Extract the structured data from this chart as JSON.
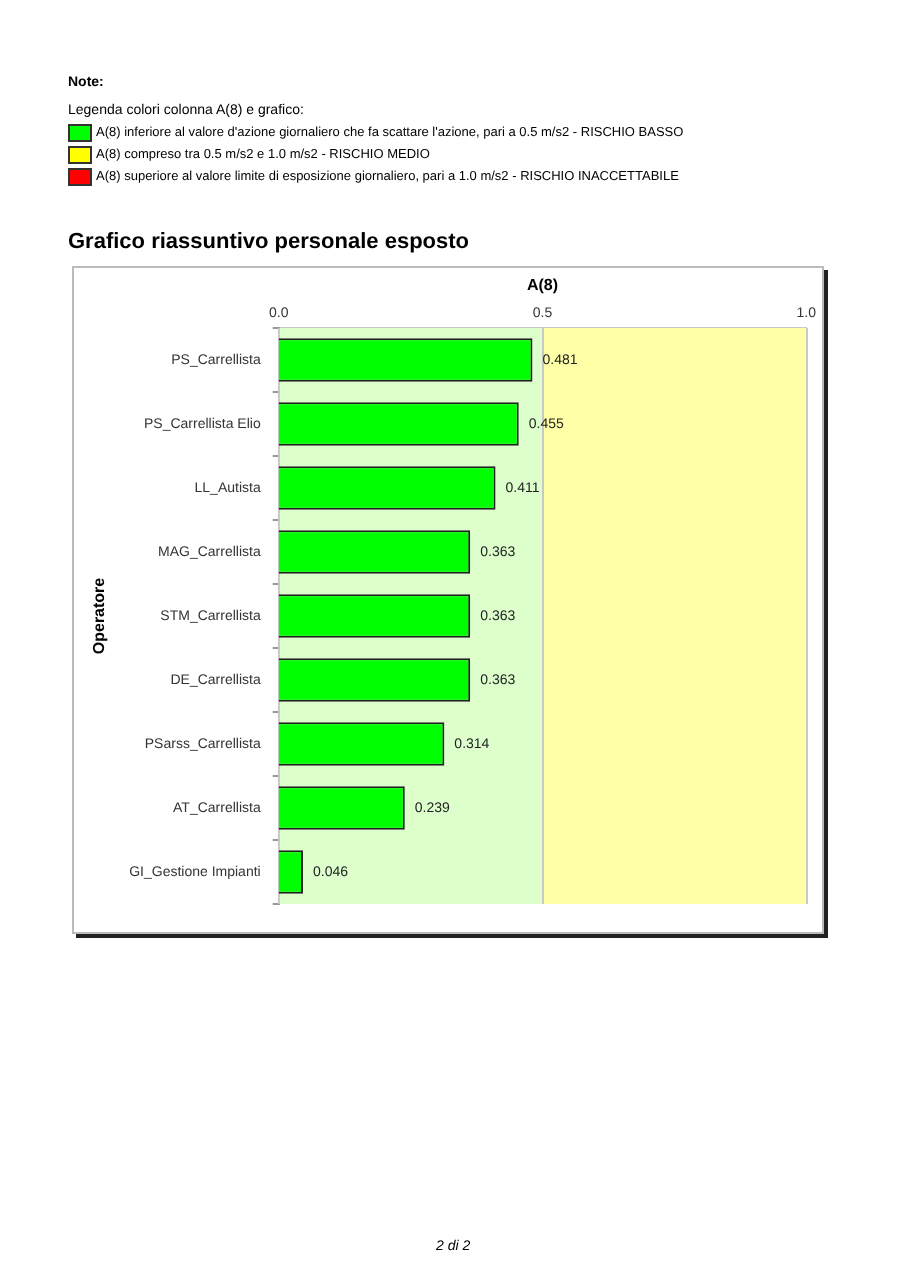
{
  "chart_data": {
    "type": "bar",
    "orientation": "horizontal",
    "title": "Grafico riassuntivo personale esposto",
    "xlabel": "A(8)",
    "ylabel": "Operatore",
    "categories": [
      "PS_Carrellista",
      "PS_Carrellista Elio",
      "LL_Autista",
      "MAG_Carrellista",
      "STM_Carrellista",
      "DE_Carrellista",
      "PSarss_Carrellista",
      "AT_Carrellista",
      "GI_Gestione Impianti"
    ],
    "values": [
      0.481,
      0.455,
      0.411,
      0.363,
      0.363,
      0.363,
      0.314,
      0.239,
      0.046
    ],
    "color": "#00ff00",
    "data_labels": true,
    "xlim": [
      0,
      1
    ],
    "xticks": [
      {
        "value": 0,
        "label": "0.0"
      },
      0.5,
      {
        "value": 1,
        "label": "1.0"
      }
    ],
    "grid": "x",
    "bands": [
      {
        "axis": "x",
        "from": 0,
        "to": 0.5,
        "color": "#dcffcc"
      },
      {
        "axis": "x",
        "from": 0.5,
        "to": 1,
        "color": "#ffffa8"
      }
    ],
    "annotations": [
      "Note:",
      "Legenda colori colonna A(8) e grafico:",
      "A(8) inferiore al valore d'azione giornaliero che fa scattare l'azione, pari a 0.5 m/s2 - RISCHIO BASSO",
      "A(8) compreso tra 0.5 m/s2 e 1.0 m/s2  - RISCHIO MEDIO",
      "A(8) superiore al valore limite di esposizione giornaliero, pari a 1.0 m/s2 - RISCHIO INACCETTABILE",
      "2 di 2"
    ]
  }
}
